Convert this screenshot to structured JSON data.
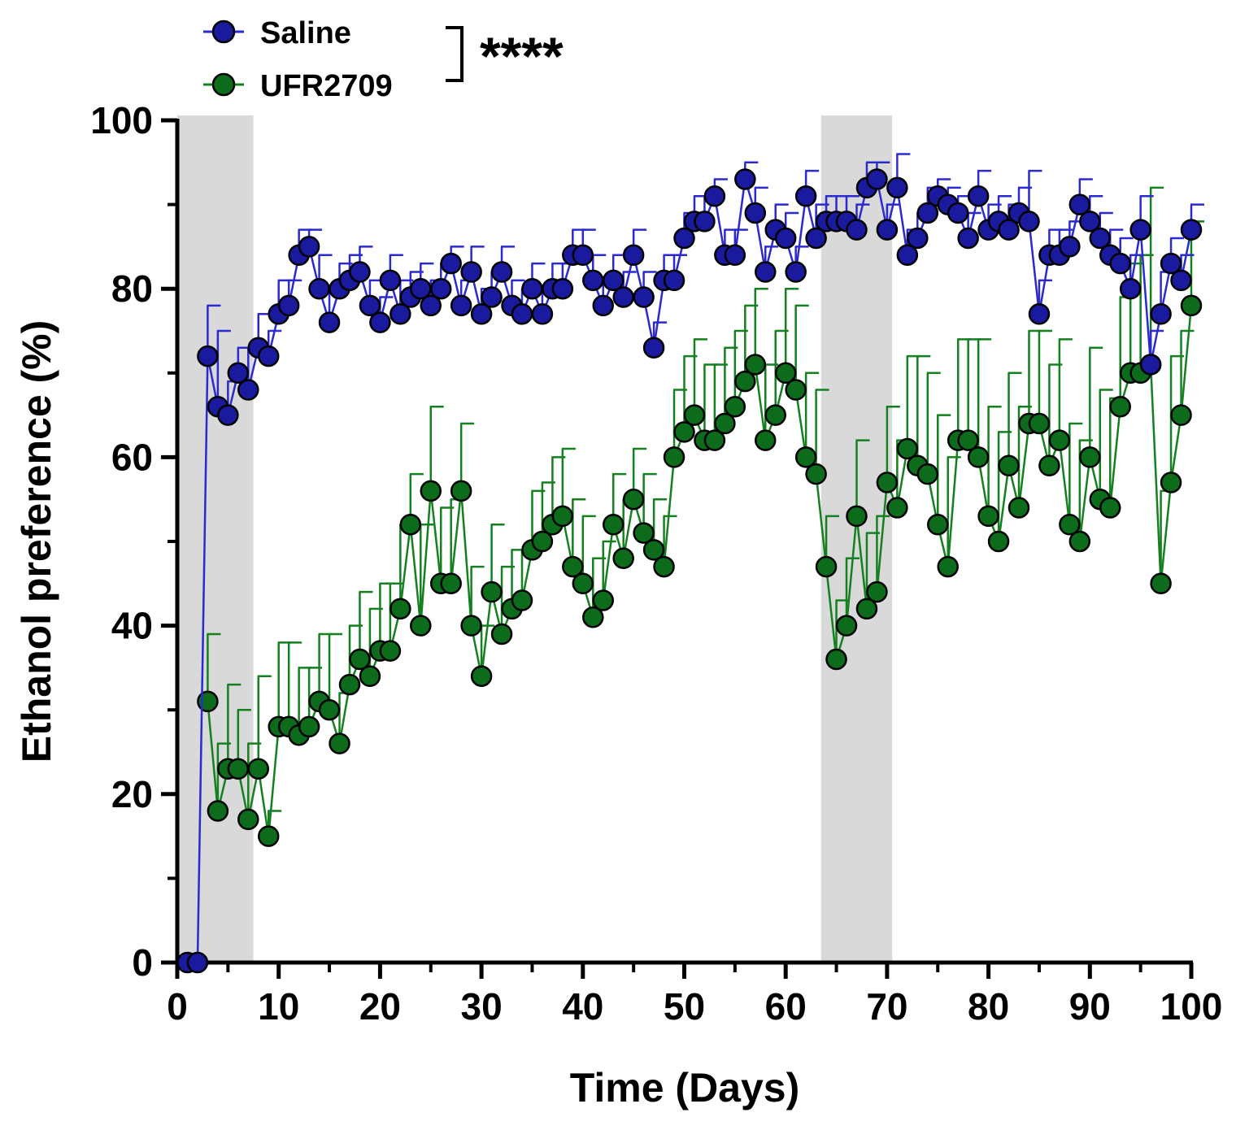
{
  "chart_data": {
    "type": "line",
    "title": "",
    "xlabel": "Time (Days)",
    "ylabel": "Ethanol preference (%)",
    "xlim": [
      0,
      100
    ],
    "ylim": [
      0,
      100
    ],
    "xticks": [
      0,
      10,
      20,
      30,
      40,
      50,
      60,
      70,
      80,
      90,
      100
    ],
    "yticks": [
      0,
      20,
      40,
      60,
      80,
      100
    ],
    "shaded_regions": [
      [
        0,
        7.5
      ],
      [
        63.5,
        70.5
      ]
    ],
    "legend_position": "top-left",
    "significance": "****",
    "colors": {
      "saline": "#1a1a9e",
      "saline_line": "#2a2ad0",
      "ufr": "#0d6b1c",
      "ufr_line": "#15801f",
      "shade": "#d9d9d9"
    },
    "series": [
      {
        "name": "Saline",
        "x": [
          1,
          2,
          3,
          4,
          5,
          6,
          7,
          8,
          9,
          10,
          11,
          12,
          13,
          14,
          15,
          16,
          17,
          18,
          19,
          20,
          21,
          22,
          23,
          24,
          25,
          26,
          27,
          28,
          29,
          30,
          31,
          32,
          33,
          34,
          35,
          36,
          37,
          38,
          39,
          40,
          41,
          42,
          43,
          44,
          45,
          46,
          47,
          48,
          49,
          50,
          51,
          52,
          53,
          54,
          55,
          56,
          57,
          58,
          59,
          60,
          61,
          62,
          63,
          64,
          65,
          66,
          67,
          68,
          69,
          70,
          71,
          72,
          73,
          74,
          75,
          76,
          77,
          78,
          79,
          80,
          81,
          82,
          83,
          84,
          85,
          86,
          87,
          88,
          89,
          90,
          91,
          92,
          93,
          94,
          95,
          96,
          97,
          98,
          99,
          100
        ],
        "values": [
          0,
          0,
          72,
          66,
          65,
          70,
          68,
          73,
          72,
          77,
          78,
          84,
          85,
          80,
          76,
          80,
          81,
          82,
          78,
          76,
          81,
          77,
          79,
          80,
          78,
          80,
          83,
          78,
          82,
          77,
          79,
          82,
          78,
          77,
          80,
          77,
          80,
          80,
          84,
          84,
          81,
          78,
          81,
          79,
          84,
          79,
          73,
          81,
          81,
          86,
          88,
          88,
          91,
          84,
          84,
          93,
          89,
          82,
          87,
          86,
          82,
          91,
          86,
          88,
          88,
          88,
          87,
          92,
          93,
          87,
          92,
          84,
          86,
          89,
          91,
          90,
          89,
          86,
          91,
          87,
          88,
          87,
          89,
          88,
          77,
          84,
          84,
          85,
          90,
          88,
          86,
          84,
          83,
          80,
          87,
          71,
          77,
          83,
          81,
          87
        ],
        "errors": [
          0,
          0,
          6,
          9,
          4,
          3,
          5,
          4,
          3,
          4,
          3,
          3,
          2,
          4,
          4,
          3,
          3,
          3,
          3,
          3,
          3,
          4,
          3,
          3,
          3,
          3,
          2,
          3,
          3,
          3,
          3,
          3,
          3,
          3,
          3,
          3,
          3,
          3,
          3,
          3,
          3,
          3,
          3,
          3,
          3,
          3,
          3,
          3,
          3,
          3,
          3,
          3,
          2,
          3,
          3,
          2,
          3,
          3,
          3,
          3,
          3,
          3,
          4,
          3,
          3,
          3,
          3,
          3,
          2,
          3,
          4,
          3,
          3,
          3,
          2,
          2,
          2,
          3,
          3,
          3,
          3,
          3,
          3,
          6,
          4,
          3,
          3,
          3,
          3,
          3,
          3,
          3,
          3,
          4,
          4,
          4,
          5,
          3,
          3,
          3
        ]
      },
      {
        "name": "UFR2709",
        "x": [
          3,
          4,
          5,
          6,
          7,
          8,
          9,
          10,
          11,
          12,
          13,
          14,
          15,
          16,
          17,
          18,
          19,
          20,
          21,
          22,
          23,
          24,
          25,
          26,
          27,
          28,
          29,
          30,
          31,
          32,
          33,
          34,
          35,
          36,
          37,
          38,
          39,
          40,
          41,
          42,
          43,
          44,
          45,
          46,
          47,
          48,
          49,
          50,
          51,
          52,
          53,
          54,
          55,
          56,
          57,
          58,
          59,
          60,
          61,
          62,
          63,
          64,
          65,
          66,
          67,
          68,
          69,
          70,
          71,
          72,
          73,
          74,
          75,
          76,
          77,
          78,
          79,
          80,
          81,
          82,
          83,
          84,
          85,
          86,
          87,
          88,
          89,
          90,
          91,
          92,
          93,
          94,
          95,
          96,
          97,
          98,
          99,
          100
        ],
        "values": [
          31,
          18,
          23,
          23,
          17,
          23,
          15,
          28,
          28,
          27,
          28,
          31,
          30,
          26,
          33,
          36,
          34,
          37,
          37,
          42,
          52,
          40,
          56,
          45,
          45,
          56,
          40,
          34,
          44,
          39,
          42,
          43,
          49,
          50,
          52,
          53,
          47,
          45,
          41,
          43,
          52,
          48,
          55,
          51,
          49,
          47,
          60,
          63,
          65,
          62,
          62,
          64,
          66,
          69,
          71,
          62,
          65,
          70,
          68,
          60,
          58,
          47,
          36,
          40,
          53,
          42,
          44,
          57,
          54,
          61,
          59,
          58,
          52,
          47,
          62,
          62,
          60,
          53,
          50,
          59,
          54,
          64,
          64,
          59,
          62,
          52,
          50,
          60,
          55,
          54,
          66,
          70,
          70,
          71,
          45,
          57,
          65,
          78
        ],
        "errors": [
          8,
          8,
          10,
          7,
          9,
          11,
          3,
          10,
          10,
          8,
          7,
          8,
          9,
          6,
          7,
          8,
          8,
          8,
          8,
          10,
          6,
          12,
          10,
          9,
          10,
          8,
          7,
          6,
          8,
          8,
          7,
          6,
          7,
          7,
          8,
          8,
          8,
          8,
          7,
          7,
          6,
          7,
          6,
          7,
          6,
          6,
          8,
          9,
          9,
          9,
          9,
          9,
          9,
          9,
          9,
          9,
          10,
          10,
          10,
          10,
          10,
          6,
          7,
          8,
          9,
          9,
          9,
          9,
          8,
          11,
          13,
          12,
          13,
          13,
          12,
          12,
          14,
          13,
          13,
          11,
          12,
          11,
          11,
          12,
          12,
          12,
          12,
          13,
          13,
          13,
          13,
          13,
          14,
          21,
          11,
          15,
          10,
          10
        ]
      }
    ]
  }
}
